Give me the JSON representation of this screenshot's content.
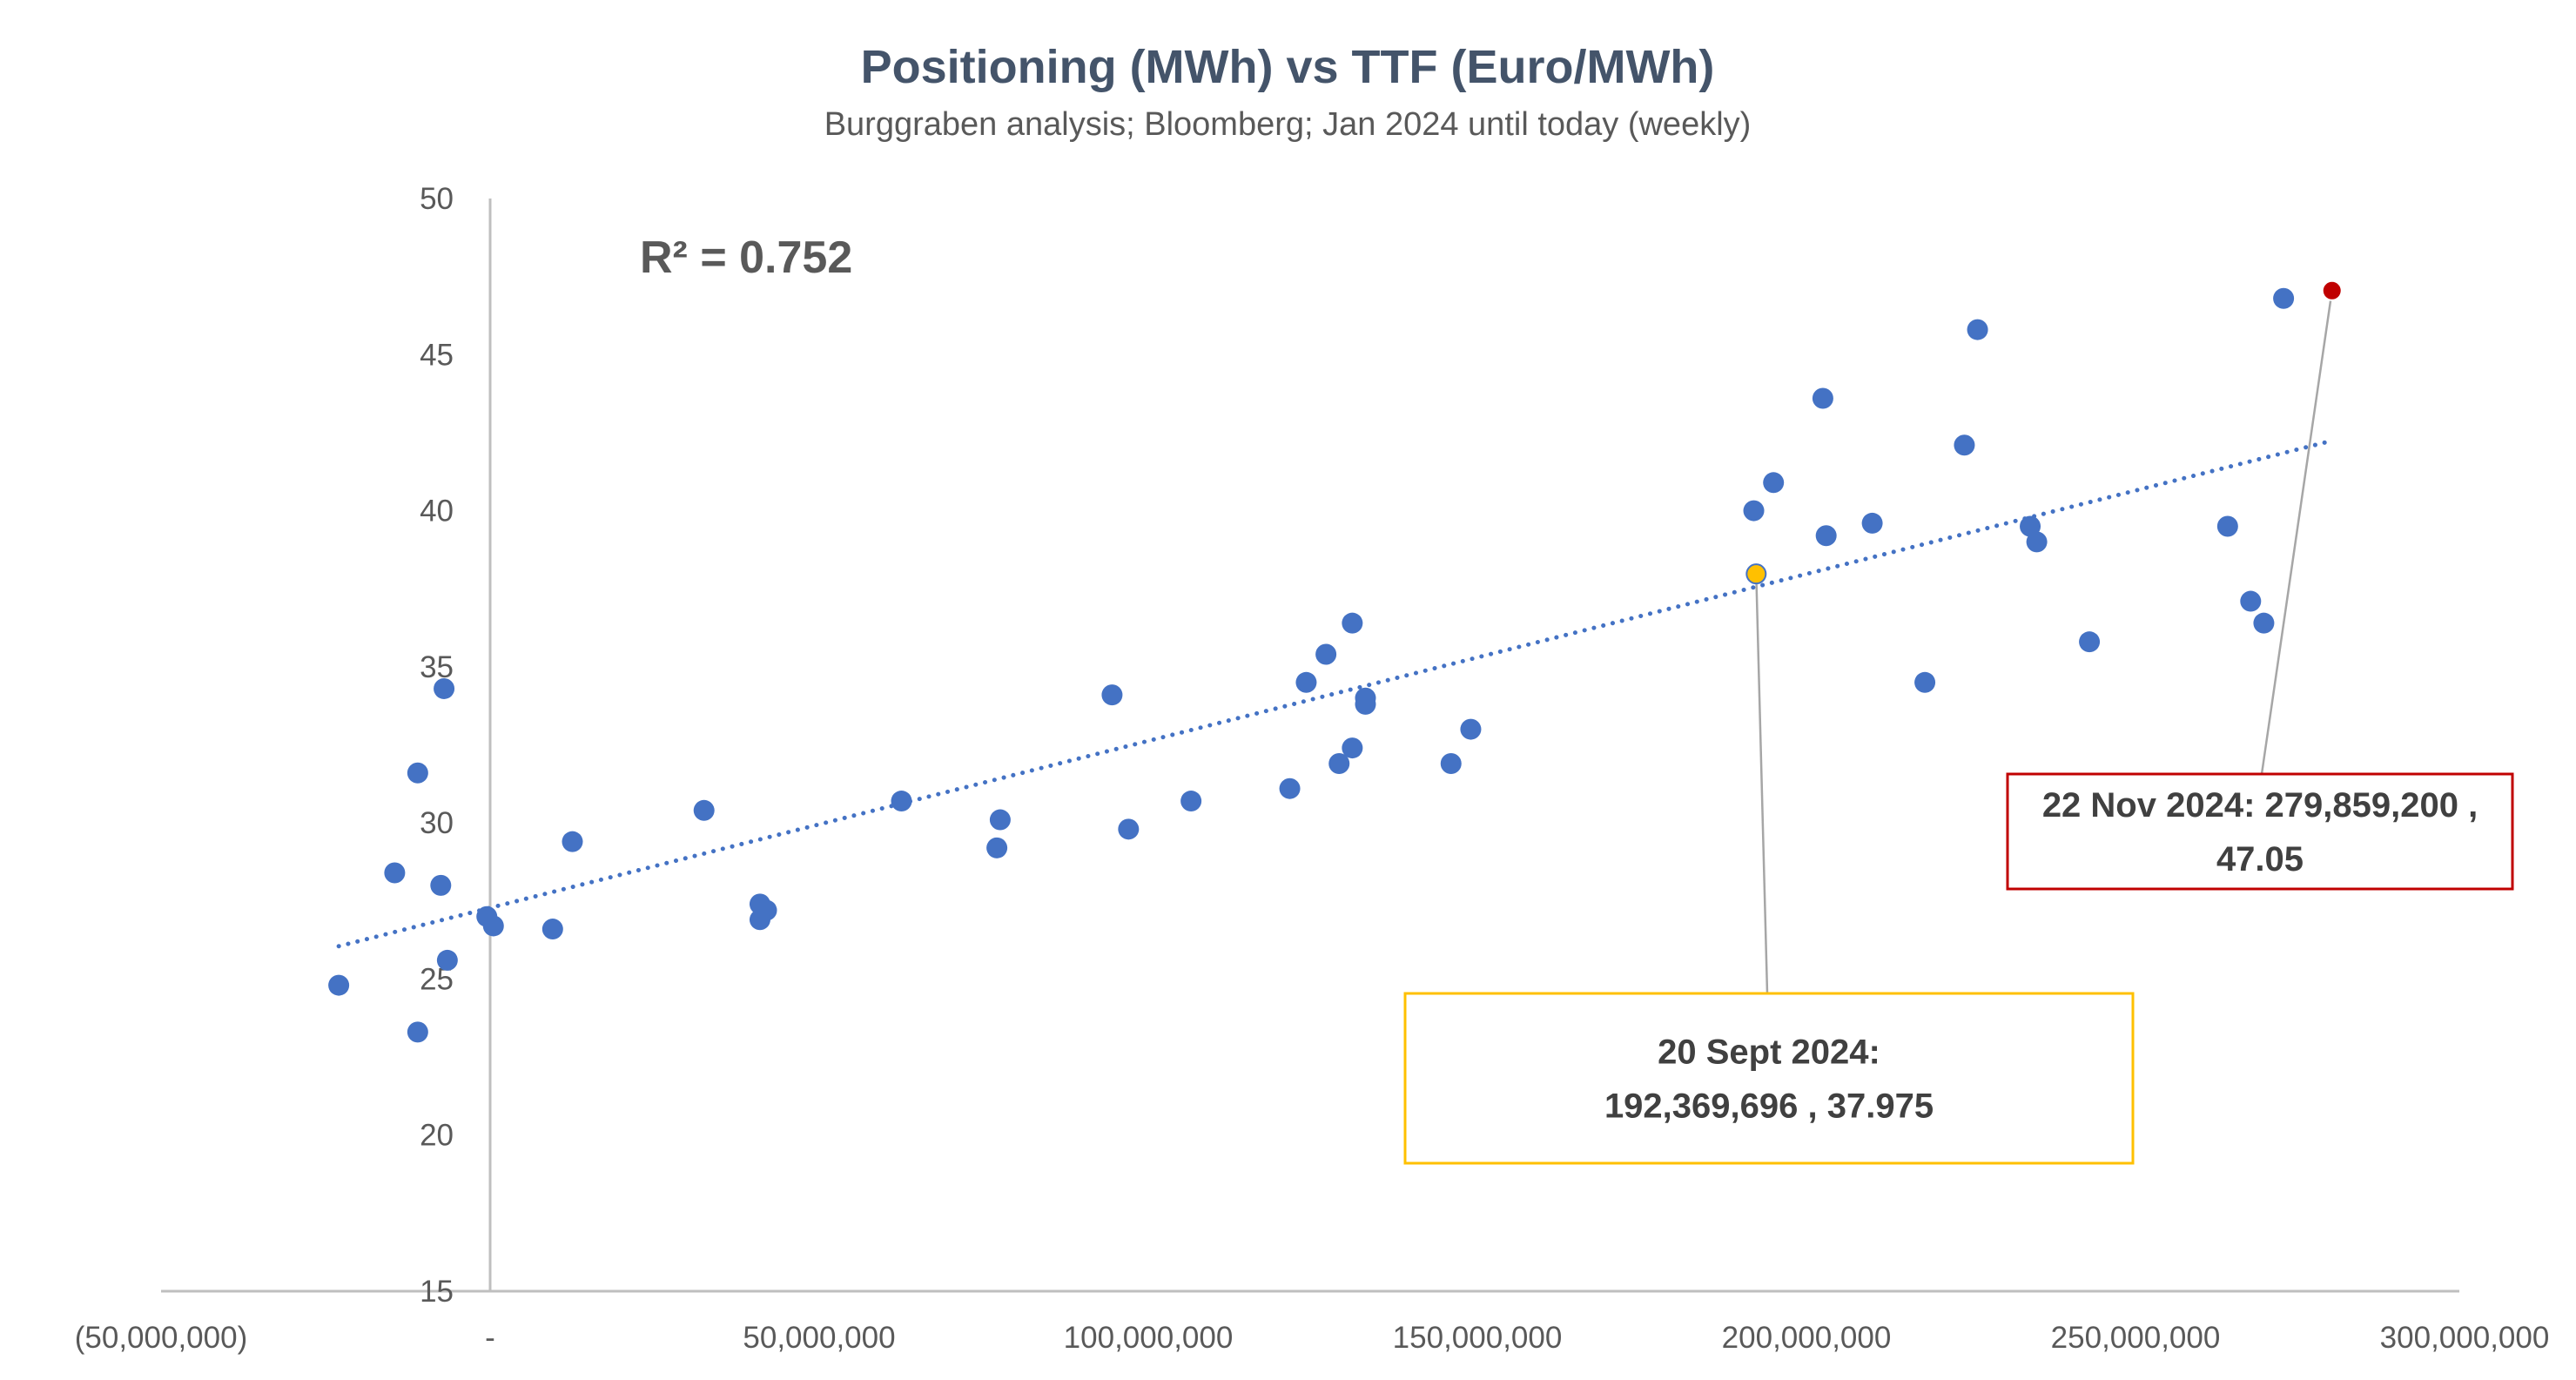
{
  "chart_data": {
    "type": "scatter",
    "title": "Positioning (MWh) vs TTF (Euro/MWh)",
    "subtitle": "Burggraben analysis; Bloomberg; Jan 2024 until today (weekly)",
    "xlabel": "",
    "ylabel": "",
    "xlim": [
      -50000000,
      300000000
    ],
    "ylim": [
      15,
      50
    ],
    "x_ticks": [
      -50000000,
      0,
      50000000,
      100000000,
      150000000,
      200000000,
      250000000,
      300000000
    ],
    "x_tick_labels": [
      "(50,000,000)",
      "-",
      "50,000,000",
      "100,000,000",
      "150,000,000",
      "200,000,000",
      "250,000,000",
      "300,000,000"
    ],
    "y_ticks": [
      15,
      20,
      25,
      30,
      35,
      40,
      45,
      50
    ],
    "y_tick_labels": [
      "15",
      "20",
      "25",
      "30",
      "35",
      "40",
      "45",
      "50"
    ],
    "grid": false,
    "annotation_r2": "R² = 0.752",
    "trendline": {
      "style": "dotted",
      "color": "#4472c4",
      "x": [
        -23000000,
        280000000
      ],
      "y": [
        26.05,
        42.25
      ]
    },
    "point_color": "#4472c4",
    "points": [
      {
        "x": -23000000,
        "y": 24.8
      },
      {
        "x": -11000000,
        "y": 23.3
      },
      {
        "x": -14500000,
        "y": 28.4
      },
      {
        "x": -11000000,
        "y": 31.6
      },
      {
        "x": -7500000,
        "y": 28.0
      },
      {
        "x": -7000000,
        "y": 34.3
      },
      {
        "x": -6500000,
        "y": 25.6
      },
      {
        "x": -500000,
        "y": 27.0
      },
      {
        "x": 500000,
        "y": 26.7
      },
      {
        "x": 9500000,
        "y": 26.6
      },
      {
        "x": 12500000,
        "y": 29.4
      },
      {
        "x": 32500000,
        "y": 30.4
      },
      {
        "x": 41000000,
        "y": 27.4
      },
      {
        "x": 41000000,
        "y": 26.9
      },
      {
        "x": 42000000,
        "y": 27.2
      },
      {
        "x": 62500000,
        "y": 30.7
      },
      {
        "x": 77000000,
        "y": 29.2
      },
      {
        "x": 77500000,
        "y": 30.1
      },
      {
        "x": 94500000,
        "y": 34.1
      },
      {
        "x": 97000000,
        "y": 29.8
      },
      {
        "x": 106500000,
        "y": 30.7
      },
      {
        "x": 121500000,
        "y": 31.1
      },
      {
        "x": 124000000,
        "y": 34.5
      },
      {
        "x": 127000000,
        "y": 35.4
      },
      {
        "x": 129000000,
        "y": 31.9
      },
      {
        "x": 131000000,
        "y": 32.4
      },
      {
        "x": 131000000,
        "y": 36.4
      },
      {
        "x": 133000000,
        "y": 34.0
      },
      {
        "x": 133000000,
        "y": 33.8
      },
      {
        "x": 146000000,
        "y": 31.9
      },
      {
        "x": 149000000,
        "y": 33.0
      },
      {
        "x": 192000000,
        "y": 40.0
      },
      {
        "x": 195000000,
        "y": 40.9
      },
      {
        "x": 202500000,
        "y": 43.6
      },
      {
        "x": 203000000,
        "y": 39.2
      },
      {
        "x": 210000000,
        "y": 39.6
      },
      {
        "x": 218000000,
        "y": 34.5
      },
      {
        "x": 224000000,
        "y": 42.1
      },
      {
        "x": 226000000,
        "y": 45.8
      },
      {
        "x": 234000000,
        "y": 39.5
      },
      {
        "x": 235000000,
        "y": 39.0
      },
      {
        "x": 243000000,
        "y": 35.8
      },
      {
        "x": 264000000,
        "y": 39.5
      },
      {
        "x": 267500000,
        "y": 37.1
      },
      {
        "x": 269500000,
        "y": 36.4
      },
      {
        "x": 272500000,
        "y": 46.8
      }
    ],
    "highlights": [
      {
        "x": 192369696,
        "y": 37.975,
        "color": "#ffc000",
        "stroke": "#4472c4",
        "label_lines": [
          "20 Sept 2024:",
          "192,369,696 , 37.975"
        ],
        "box_border": "#ffc000"
      },
      {
        "x": 279859200,
        "y": 47.05,
        "color": "#c00000",
        "stroke": "#ffffff",
        "label_lines": [
          "22 Nov 2024:  279,859,200 ,",
          "47.05"
        ],
        "box_border": "#c00000"
      }
    ]
  }
}
